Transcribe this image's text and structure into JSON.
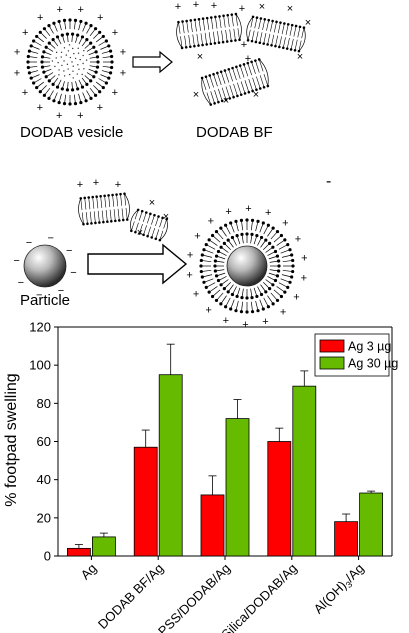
{
  "schematic": {
    "vesicle_label": "DODAB vesicle",
    "bf_label": "DODAB BF",
    "particle_label": "Particle",
    "minus_sign": "-"
  },
  "chart_data": {
    "type": "bar",
    "categories": [
      "Ag",
      "DODAB BF/Ag",
      "PSS/DODAB/Ag",
      "Silica/DODAB/Ag",
      "Al(OH)3/Ag"
    ],
    "series": [
      {
        "name": "Ag  3 µg",
        "color": "#ff0000",
        "values": [
          4,
          57,
          32,
          60,
          18
        ],
        "errors": [
          2,
          9,
          10,
          7,
          4
        ]
      },
      {
        "name": "Ag 30 µg",
        "color": "#66bb00",
        "values": [
          10,
          95,
          72,
          89,
          33
        ],
        "errors": [
          2,
          16,
          10,
          8,
          1
        ]
      }
    ],
    "title": "",
    "xlabel": "",
    "ylabel": "% footpad swelling",
    "ylim": [
      0,
      120
    ],
    "yticks": [
      0,
      20,
      40,
      60,
      80,
      100,
      120
    ],
    "legend_position": "top-right",
    "grid": false
  }
}
